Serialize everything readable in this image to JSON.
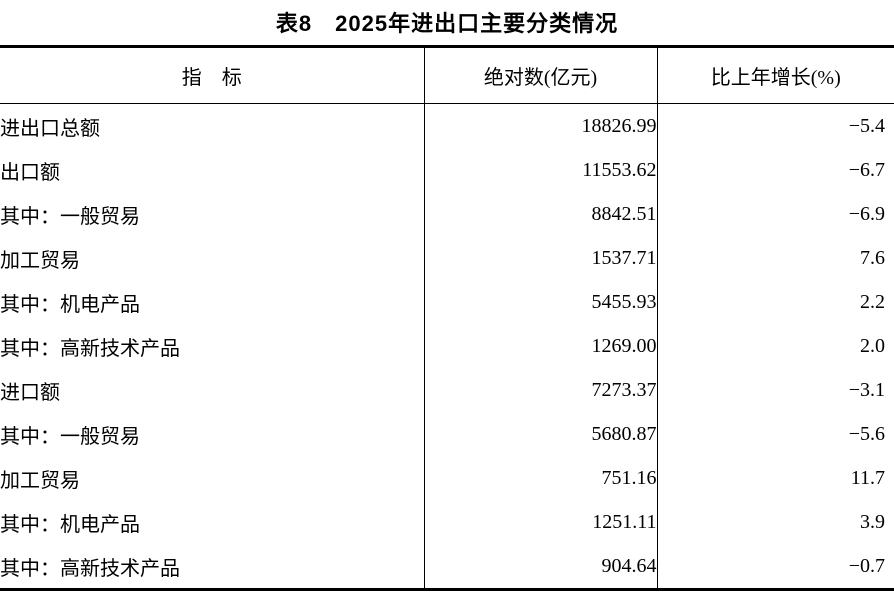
{
  "title": "表8　2025年进出口主要分类情况",
  "table": {
    "columns": [
      "指　标",
      "绝对数(亿元)",
      "比上年增长(%)"
    ],
    "rows": [
      {
        "indent": 0,
        "label": "进出口总额",
        "value": "18826.99",
        "growth": "−5.4"
      },
      {
        "indent": 1,
        "label": "出口额",
        "value": "11553.62",
        "growth": "−6.7"
      },
      {
        "indent": 2,
        "label": "其中：一般贸易",
        "value": "8842.51",
        "growth": "−6.9"
      },
      {
        "indent": 3,
        "label": "加工贸易",
        "value": "1537.71",
        "growth": "7.6"
      },
      {
        "indent": 2,
        "label": "其中：机电产品",
        "value": "5455.93",
        "growth": "2.2"
      },
      {
        "indent": 2,
        "label": "其中：高新技术产品",
        "value": "1269.00",
        "growth": "2.0"
      },
      {
        "indent": 1,
        "label": "进口额",
        "value": "7273.37",
        "growth": "−3.1"
      },
      {
        "indent": 2,
        "label": "其中：一般贸易",
        "value": "5680.87",
        "growth": "−5.6"
      },
      {
        "indent": 3,
        "label": "加工贸易",
        "value": "751.16",
        "growth": "11.7"
      },
      {
        "indent": 2,
        "label": "其中：机电产品",
        "value": "1251.11",
        "growth": "3.9"
      },
      {
        "indent": 2,
        "label": "其中：高新技术产品",
        "value": "904.64",
        "growth": "−0.7"
      }
    ]
  },
  "colors": {
    "background": "#ffffff",
    "text": "#000000",
    "border": "#000000"
  }
}
